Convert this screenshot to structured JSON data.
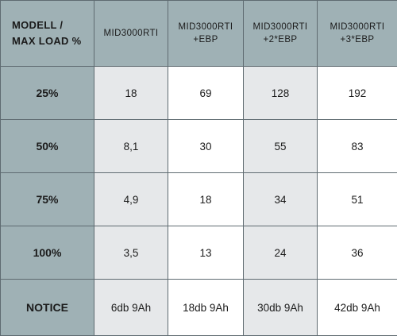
{
  "table": {
    "corner": [
      "MODELL /",
      "MAX LOAD %"
    ],
    "columns": [
      [
        "MID3000RTI"
      ],
      [
        "MID3000RTI",
        "+EBP"
      ],
      [
        "MID3000RTI",
        "+2*EBP"
      ],
      [
        "MID3000RTI",
        "+3*EBP"
      ]
    ],
    "rows": [
      {
        "label": "25%",
        "values": [
          "18",
          "69",
          "128",
          "192"
        ]
      },
      {
        "label": "50%",
        "values": [
          "8,1",
          "30",
          "55",
          "83"
        ]
      },
      {
        "label": "75%",
        "values": [
          "4,9",
          "18",
          "34",
          "51"
        ]
      },
      {
        "label": "100%",
        "values": [
          "3,5",
          "13",
          "24",
          "36"
        ]
      },
      {
        "label": "NOTICE",
        "values": [
          "6db 9Ah",
          "18db 9Ah",
          "30db 9Ah",
          "42db 9Ah"
        ]
      }
    ]
  },
  "colors": {
    "header_bg": "#9fb1b5",
    "shaded_cell_bg": "#e6e8ea",
    "white_cell_bg": "#ffffff",
    "border": "#5f6b71"
  }
}
